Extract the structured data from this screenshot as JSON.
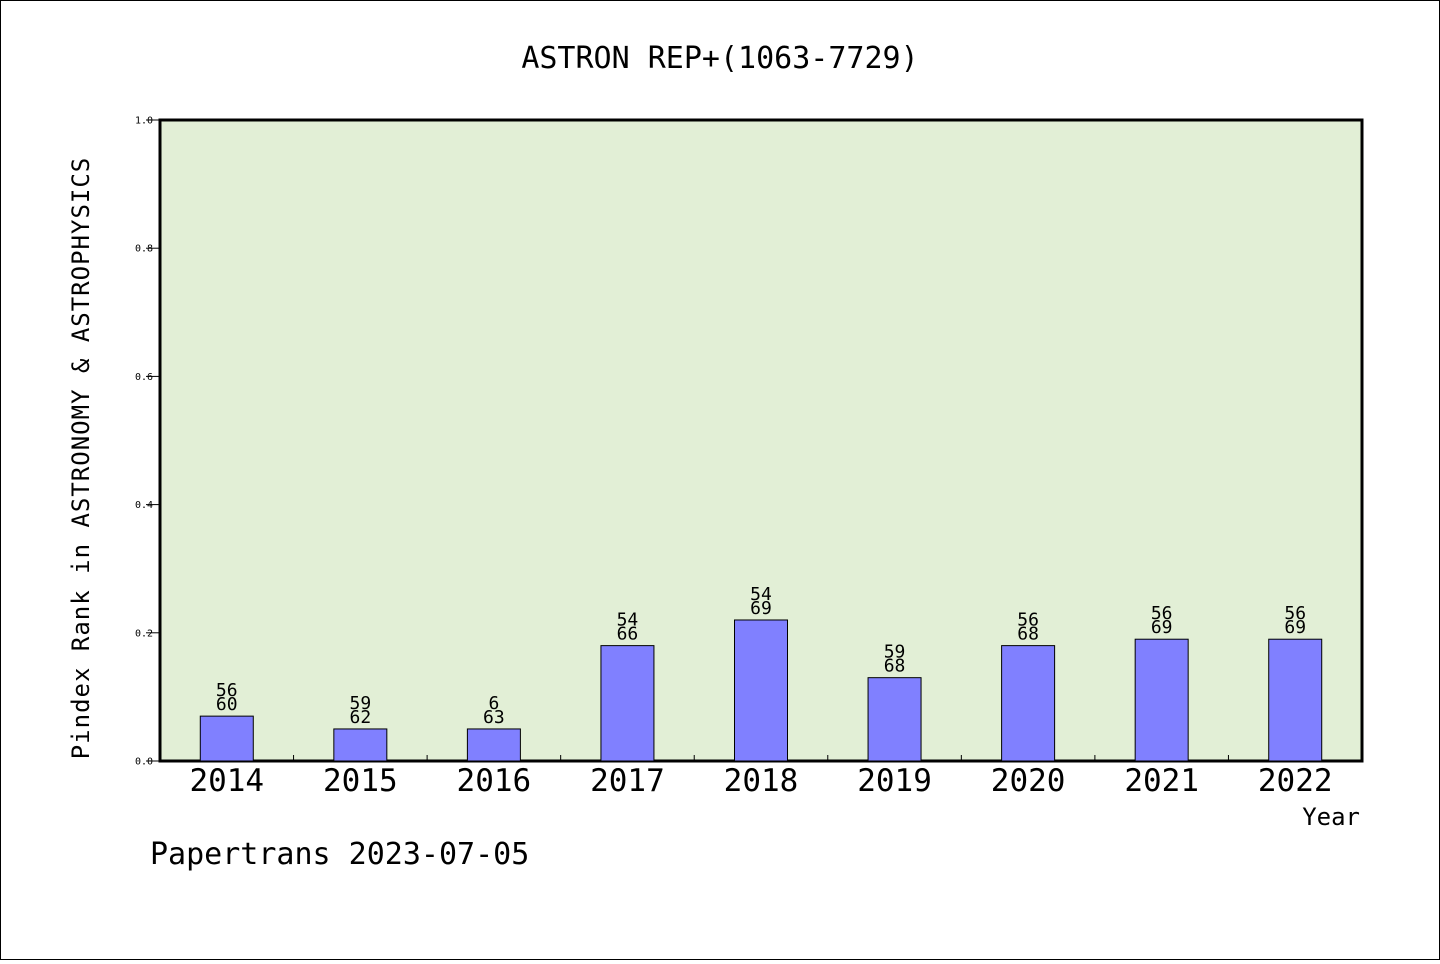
{
  "chart_data": {
    "type": "bar",
    "title": "ASTRON REP+(1063-7729)",
    "xlabel": "Year",
    "ylabel": "Pindex Rank in ASTRONOMY & ASTROPHYSICS",
    "ylim": [
      0,
      1.0
    ],
    "yticks": [
      "0.0",
      "0.2",
      "0.4",
      "0.6",
      "0.8",
      "1.0"
    ],
    "categories": [
      "2014",
      "2015",
      "2016",
      "2017",
      "2018",
      "2019",
      "2020",
      "2021",
      "2022"
    ],
    "values": [
      0.07,
      0.05,
      0.05,
      0.18,
      0.22,
      0.13,
      0.18,
      0.19,
      0.19
    ],
    "label_top": [
      "56",
      "59",
      "6",
      "54",
      "54",
      "59",
      "56",
      "56",
      "56"
    ],
    "label_bottom": [
      "60",
      "62",
      "63",
      "66",
      "69",
      "68",
      "68",
      "69",
      "69"
    ],
    "grid": false,
    "colors": {
      "bar": "#8080ff",
      "bar_edge": "#000000",
      "plot_bg": "#e2efd6"
    }
  },
  "footer": "Papertrans 2023-07-05"
}
